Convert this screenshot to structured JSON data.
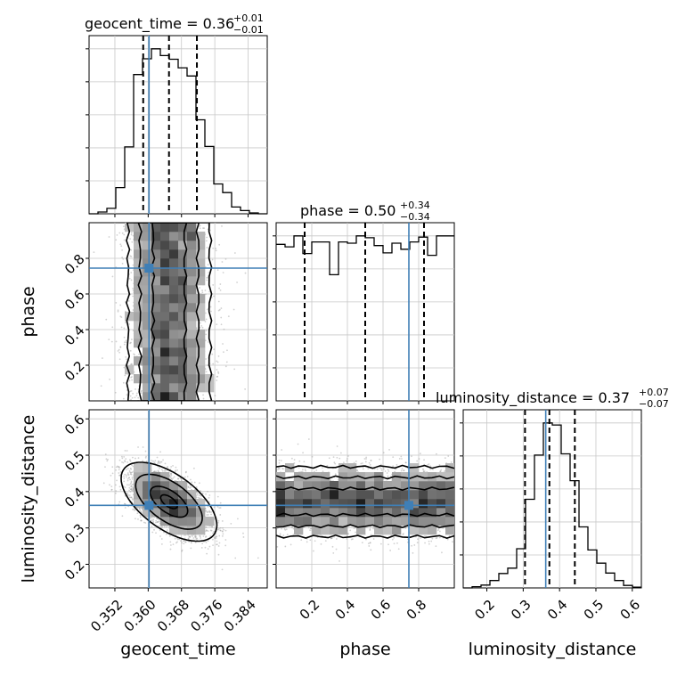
{
  "colors": {
    "truth": "#3f7fb6",
    "hist": "#000000",
    "grid": "#c8c8c8",
    "scatter": "#9a9a9a",
    "density_dark": "#1c1c1c",
    "density_light": "#d8d8d8"
  },
  "chart_data": {
    "type": "corner",
    "parameters": [
      "geocent_time",
      "phase",
      "luminosity_distance"
    ],
    "truths": {
      "geocent_time": 0.3602,
      "phase": 0.745,
      "luminosity_distance": 0.362
    },
    "titles": [
      {
        "parameter": "geocent_time",
        "main": "geocent_time = 0.36",
        "up": "+0.01",
        "down": "−0.01"
      },
      {
        "parameter": "phase",
        "main": "phase = 0.50",
        "up": "+0.34",
        "down": "−0.34"
      },
      {
        "parameter": "luminosity_distance",
        "main": "luminosity_distance = 0.37",
        "up": "+0.07",
        "down": "−0.07"
      }
    ],
    "axes": {
      "geocent_time": {
        "range": [
          0.3458,
          0.3886
        ],
        "ticks": [
          0.352,
          0.36,
          0.368,
          0.376,
          0.384
        ],
        "tick_labels": [
          "0.352",
          "0.360",
          "0.368",
          "0.376",
          "0.384"
        ]
      },
      "phase": {
        "range": [
          0.0,
          1.0
        ],
        "ticks": [
          0.2,
          0.4,
          0.6,
          0.8
        ],
        "tick_labels": [
          "0.2",
          "0.4",
          "0.6",
          "0.8"
        ]
      },
      "luminosity_distance": {
        "range": [
          0.135,
          0.625
        ],
        "ticks": [
          0.2,
          0.3,
          0.4,
          0.5,
          0.6
        ],
        "tick_labels": [
          "0.2",
          "0.3",
          "0.4",
          "0.5",
          "0.6"
        ]
      }
    },
    "histograms": {
      "geocent_time": {
        "quantiles": [
          0.3588,
          0.365,
          0.3717
        ],
        "edges": [
          0.3458,
          0.34794,
          0.35008,
          0.35222,
          0.35436,
          0.3565,
          0.35864,
          0.36078,
          0.36292,
          0.36506,
          0.3672,
          0.36934,
          0.37148,
          0.37362,
          0.37576,
          0.3779,
          0.38004,
          0.38218,
          0.38432,
          0.38646,
          0.3886
        ],
        "counts": [
          0,
          4,
          12,
          58,
          148,
          308,
          343,
          365,
          350,
          342,
          323,
          305,
          208,
          149,
          66,
          47,
          15,
          7,
          2,
          0
        ]
      },
      "phase": {
        "quantiles": [
          0.16,
          0.5,
          0.83
        ],
        "edges": [
          0.0,
          0.05,
          0.1,
          0.15,
          0.2,
          0.25,
          0.3,
          0.35,
          0.4,
          0.45,
          0.5,
          0.55,
          0.6,
          0.65,
          0.7,
          0.75,
          0.8,
          0.85,
          0.9,
          0.95,
          1.0
        ],
        "counts": [
          258,
          254,
          272,
          243,
          262,
          262,
          208,
          262,
          260,
          272,
          269,
          256,
          244,
          260,
          250,
          262,
          270,
          240,
          272,
          272
        ]
      },
      "luminosity_distance": {
        "quantiles": [
          0.305,
          0.372,
          0.442
        ],
        "edges": [
          0.135,
          0.1595,
          0.184,
          0.2085,
          0.233,
          0.2575,
          0.282,
          0.3065,
          0.331,
          0.3555,
          0.38,
          0.4045,
          0.429,
          0.4535,
          0.478,
          0.5025,
          0.527,
          0.5515,
          0.576,
          0.6005,
          0.625
        ],
        "counts": [
          0,
          3,
          7,
          18,
          35,
          48,
          95,
          215,
          322,
          400,
          395,
          325,
          260,
          148,
          92,
          60,
          36,
          18,
          6,
          2
        ]
      }
    }
  }
}
